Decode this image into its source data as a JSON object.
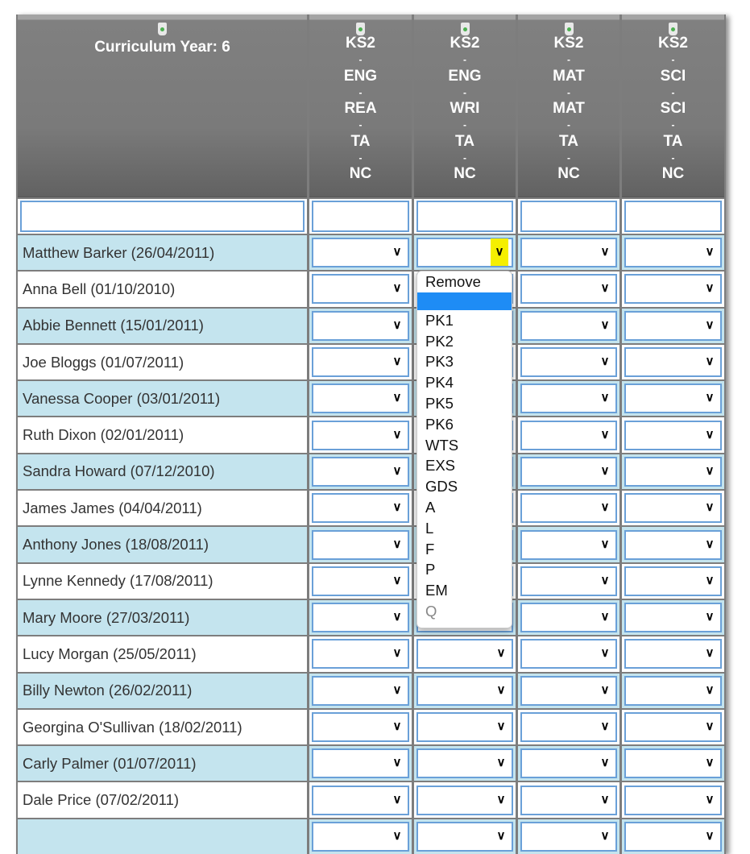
{
  "header": {
    "title": "Curriculum Year: 6",
    "columns": [
      {
        "parts": [
          "KS2",
          "ENG",
          "REA",
          "TA",
          "NC"
        ]
      },
      {
        "parts": [
          "KS2",
          "ENG",
          "WRI",
          "TA",
          "NC"
        ]
      },
      {
        "parts": [
          "KS2",
          "MAT",
          "MAT",
          "TA",
          "NC"
        ]
      },
      {
        "parts": [
          "KS2",
          "SCI",
          "SCI",
          "TA",
          "NC"
        ]
      }
    ],
    "separator": "-"
  },
  "students": [
    "Matthew Barker (26/04/2011)",
    "Anna Bell (01/10/2010)",
    "Abbie Bennett (15/01/2011)",
    "Joe Bloggs (01/07/2011)",
    "Vanessa Cooper (03/01/2011)",
    "Ruth Dixon (02/01/2011)",
    "Sandra Howard (07/12/2010)",
    "James James (04/04/2011)",
    "Anthony Jones (18/08/2011)",
    "Lynne Kennedy (17/08/2011)",
    "Mary Moore (27/03/2011)",
    "Lucy Morgan (25/05/2011)",
    "Billy Newton (26/02/2011)",
    "Georgina O'Sullivan (18/02/2011)",
    "Carly Palmer (01/07/2011)",
    "Dale Price (07/02/2011)",
    ""
  ],
  "dropdown": {
    "open_row": 0,
    "open_column": 1,
    "options": [
      "Remove",
      "",
      "PK1",
      "PK2",
      "PK3",
      "PK4",
      "PK5",
      "PK6",
      "WTS",
      "EXS",
      "GDS",
      "A",
      "L",
      "F",
      "P",
      "EM",
      "Q"
    ],
    "highlighted_index": 1,
    "disabled_index": 16
  },
  "colors": {
    "header_bg": "#7a7a7a",
    "row_alt": "#c4e4ee",
    "input_border": "#6aa0d8",
    "highlight": "#1e8cf5",
    "chevron_focus": "#f5ef00"
  }
}
